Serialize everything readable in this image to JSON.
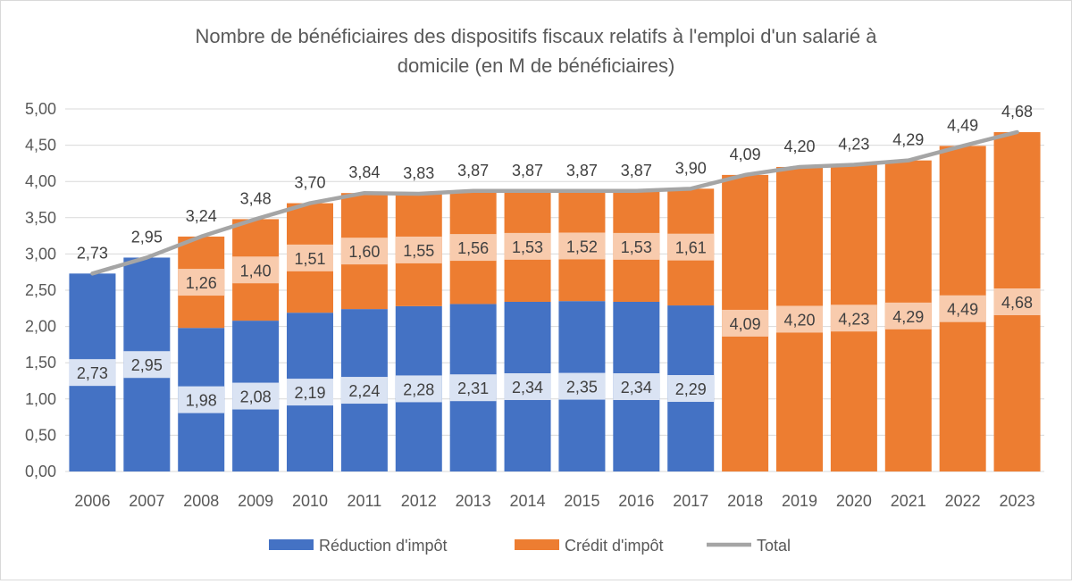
{
  "chart_data": {
    "type": "bar",
    "stacked": true,
    "title": "Nombre de bénéficiaires des dispositifs fiscaux relatifs à l'emploi d'un salarié à domicile (en M de bénéficiaires)",
    "title_lines": [
      "Nombre de bénéficiaires des dispositifs fiscaux relatifs à l'emploi d'un salarié à",
      "domicile (en M de bénéficiaires)"
    ],
    "xlabel": "",
    "ylabel": "",
    "ylim": [
      0,
      5
    ],
    "yticks": [
      "0,00",
      "0,50",
      "1,00",
      "1,50",
      "2,00",
      "2,50",
      "3,00",
      "3,50",
      "4,00",
      "4,50",
      "5,00"
    ],
    "grid": true,
    "legend_position": "bottom",
    "categories": [
      "2006",
      "2007",
      "2008",
      "2009",
      "2010",
      "2011",
      "2012",
      "2013",
      "2014",
      "2015",
      "2016",
      "2017",
      "2018",
      "2019",
      "2020",
      "2021",
      "2022",
      "2023"
    ],
    "series": [
      {
        "name": "Réduction d'impôt",
        "kind": "bar",
        "color": "#4472c4",
        "label_bg": "#dae3f3",
        "values": [
          2.73,
          2.95,
          1.98,
          2.08,
          2.19,
          2.24,
          2.28,
          2.31,
          2.34,
          2.35,
          2.34,
          2.29,
          null,
          null,
          null,
          null,
          null,
          null
        ],
        "labels": [
          "2,73",
          "2,95",
          "1,98",
          "2,08",
          "2,19",
          "2,24",
          "2,28",
          "2,31",
          "2,34",
          "2,35",
          "2,34",
          "2,29",
          "",
          "",
          "",
          "",
          "",
          ""
        ]
      },
      {
        "name": "Crédit d'impôt",
        "kind": "bar",
        "color": "#ed7d31",
        "label_bg": "#f8cbad",
        "values": [
          null,
          null,
          1.26,
          1.4,
          1.51,
          1.6,
          1.55,
          1.56,
          1.53,
          1.52,
          1.53,
          1.61,
          4.09,
          4.2,
          4.23,
          4.29,
          4.49,
          4.68
        ],
        "labels": [
          "",
          "",
          "1,26",
          "1,40",
          "1,51",
          "1,60",
          "1,55",
          "1,56",
          "1,53",
          "1,52",
          "1,53",
          "1,61",
          "4,09",
          "4,20",
          "4,23",
          "4,29",
          "4,49",
          "4,68"
        ]
      },
      {
        "name": "Total",
        "kind": "line",
        "color": "#a5a5a5",
        "values": [
          2.73,
          2.95,
          3.24,
          3.48,
          3.7,
          3.84,
          3.83,
          3.87,
          3.87,
          3.87,
          3.87,
          3.9,
          4.09,
          4.2,
          4.23,
          4.29,
          4.49,
          4.68
        ],
        "labels": [
          "2,73",
          "2,95",
          "3,24",
          "3,48",
          "3,70",
          "3,84",
          "3,83",
          "3,87",
          "3,87",
          "3,87",
          "3,87",
          "3,90",
          "4,09",
          "4,20",
          "4,23",
          "4,29",
          "4,49",
          "4,68"
        ]
      }
    ]
  }
}
